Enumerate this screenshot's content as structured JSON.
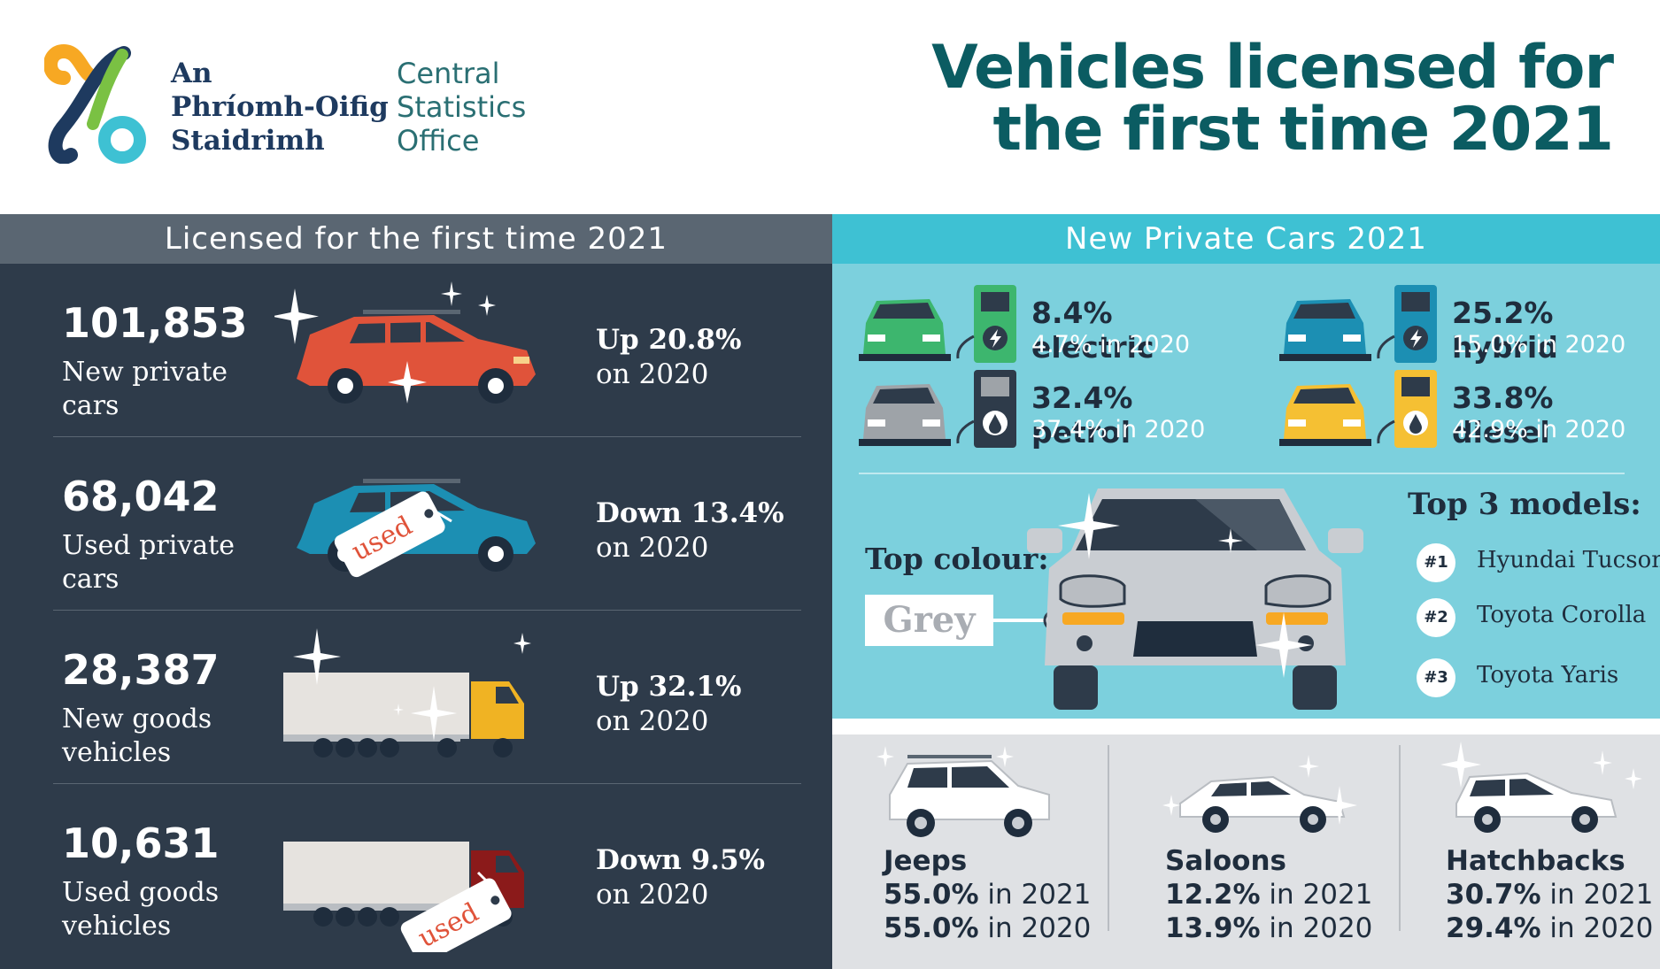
{
  "header": {
    "logo_irish": [
      "An",
      "Phríomh-Oifig",
      "Staidrimh"
    ],
    "logo_english": [
      "Central",
      "Statistics",
      "Office"
    ],
    "title_line1": "Vehicles licensed for",
    "title_line2": "the first time 2021"
  },
  "left": {
    "heading": "Licensed for the first time 2021",
    "rows": [
      {
        "value": "101,853",
        "label": "New private cars",
        "change": "Up 20.8%",
        "period": "on 2020"
      },
      {
        "value": "68,042",
        "label": "Used private cars",
        "change": "Down 13.4%",
        "period": "on 2020",
        "tag": "used"
      },
      {
        "value": "28,387",
        "label": "New goods vehicles",
        "change": "Up 32.1%",
        "period": "on 2020"
      },
      {
        "value": "10,631",
        "label": "Used goods vehicles",
        "change": "Down 9.5%",
        "period": "on 2020",
        "tag": "used"
      }
    ]
  },
  "right": {
    "heading": "New Private Cars 2021",
    "fuels": [
      {
        "main": "8.4% electric",
        "prev": "4.7% in 2020",
        "car_color": "#3db66e",
        "pump_color": "#3db66e",
        "pump_icon": "bolt-icon"
      },
      {
        "main": "25.2% hybrid",
        "prev": "15.0% in 2020",
        "car_color": "#1c8fb3",
        "pump_color": "#1c8fb3",
        "pump_icon": "bolt-icon"
      },
      {
        "main": "32.4% petrol",
        "prev": "37.4% in 2020",
        "car_color": "#9ea3a8",
        "pump_color": "#2e3b4a",
        "pump_icon": "fuel-drop-icon"
      },
      {
        "main": "33.8% diesel",
        "prev": "42.9% in 2020",
        "car_color": "#f5c033",
        "pump_color": "#f5c033",
        "pump_icon": "fuel-drop-icon"
      }
    ],
    "top_colour_label": "Top colour:",
    "top_colour_value": "Grey",
    "models_title": "Top 3 models:",
    "models": [
      {
        "rank": "#1",
        "name": "Hyundai Tucson"
      },
      {
        "rank": "#2",
        "name": "Toyota Corolla"
      },
      {
        "rank": "#3",
        "name": "Toyota Yaris"
      }
    ]
  },
  "body_types": [
    {
      "name": "Jeeps",
      "v2021": "55.0%",
      "l2021": " in 2021",
      "v2020": "55.0%",
      "l2020": " in 2020"
    },
    {
      "name": "Saloons",
      "v2021": "12.2%",
      "l2021": " in 2021",
      "v2020": "13.9%",
      "l2020": " in 2020"
    },
    {
      "name": "Hatchbacks",
      "v2021": "30.7%",
      "l2021": " in 2021",
      "v2020": "29.4%",
      "l2020": " in 2020"
    }
  ],
  "colors": {
    "title": "#0b5c62",
    "left_bg": "#2e3b4a",
    "right_bg": "#7cd0dd",
    "right_header": "#3ec1d3",
    "red_car": "#e0533a",
    "blue_car": "#1c8fb3",
    "truck_cab_yellow": "#f0b323",
    "truck_cab_red": "#8b1a1a"
  }
}
